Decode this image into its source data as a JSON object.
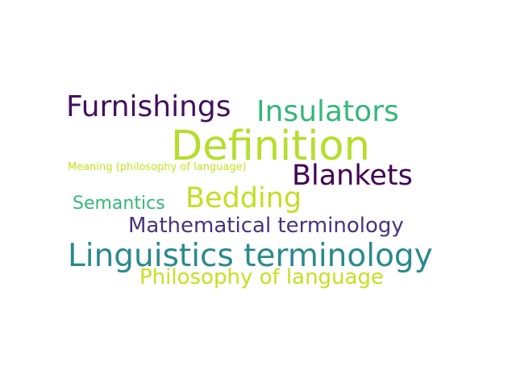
{
  "word_cloud": {
    "words": [
      {
        "key": "furnishings",
        "text": "Furnishings",
        "color": "#44105e"
      },
      {
        "key": "insulators",
        "text": "Insulators",
        "color": "#35b779"
      },
      {
        "key": "definition",
        "text": "Definition",
        "color": "#b5de2b"
      },
      {
        "key": "meaning",
        "text": "Meaning (philosophy of language)",
        "color": "#c8e020"
      },
      {
        "key": "blankets",
        "text": "Blankets",
        "color": "#440154"
      },
      {
        "key": "bedding",
        "text": "Bedding",
        "color": "#c2df23"
      },
      {
        "key": "semantics",
        "text": "Semantics",
        "color": "#35b779"
      },
      {
        "key": "mathematical",
        "text": "Mathematical terminology",
        "color": "#46337e"
      },
      {
        "key": "linguistics",
        "text": "Linguistics terminology",
        "color": "#2a8a8c"
      },
      {
        "key": "philosophy",
        "text": "Philosophy of language",
        "color": "#c5e021"
      }
    ]
  }
}
